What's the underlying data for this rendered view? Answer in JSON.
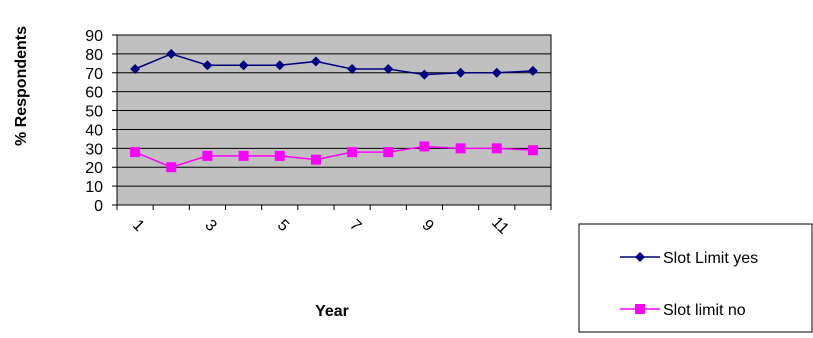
{
  "chart_data": {
    "type": "line",
    "xlabel": "Year",
    "ylabel": "% Respondents",
    "x": [
      1,
      2,
      3,
      4,
      5,
      6,
      7,
      8,
      9,
      10,
      11,
      12
    ],
    "x_tick_labels": [
      "1",
      "3",
      "5",
      "7",
      "9",
      "11"
    ],
    "ylim": [
      0,
      90
    ],
    "y_ticks": [
      0,
      10,
      20,
      30,
      40,
      50,
      60,
      70,
      80,
      90
    ],
    "grid": true,
    "legend_position": "bottom-right",
    "plot_background": "#c0c0c0",
    "series": [
      {
        "name": "Slot Limit yes",
        "color": "#000080",
        "marker": "diamond",
        "values": [
          72,
          80,
          74,
          74,
          74,
          76,
          72,
          72,
          69,
          70,
          70,
          71
        ]
      },
      {
        "name": "Slot limit no",
        "color": "#ff00ff",
        "marker": "square",
        "values": [
          28,
          20,
          26,
          26,
          26,
          24,
          28,
          28,
          31,
          30,
          30,
          29
        ]
      }
    ]
  }
}
